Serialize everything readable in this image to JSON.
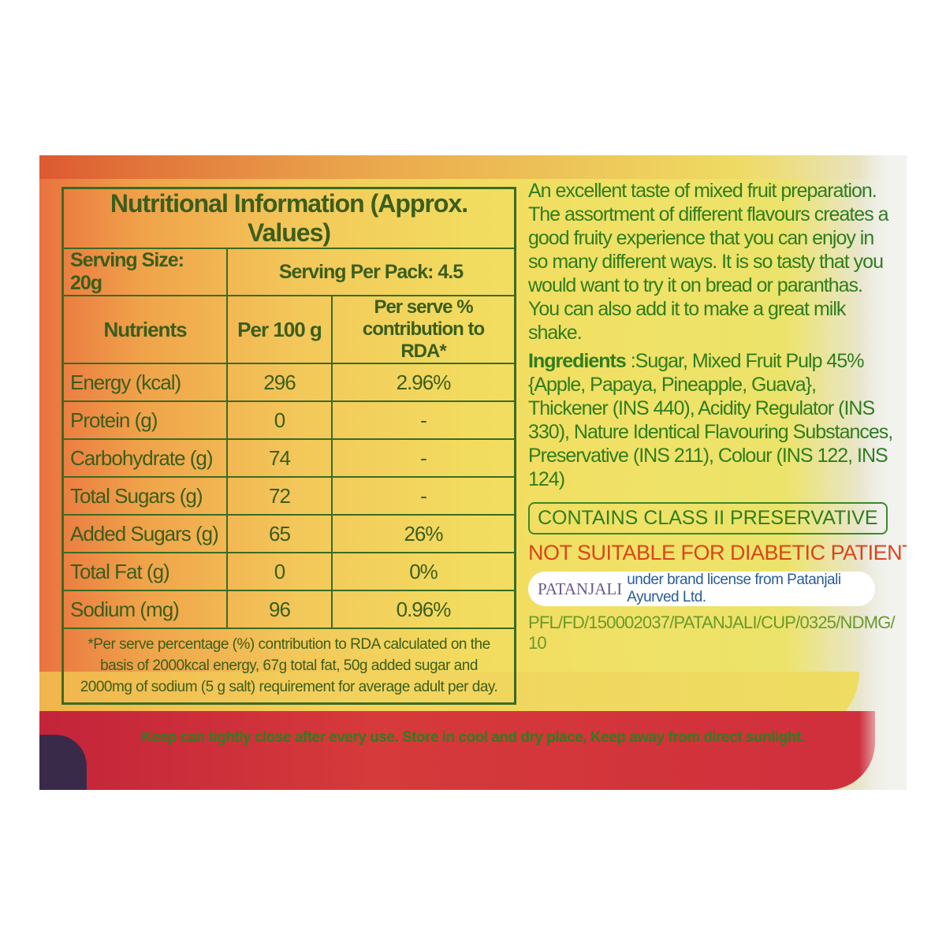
{
  "nutrition": {
    "title": "Nutritional Information (Approx. Values)",
    "serving_size": "Serving Size: 20g",
    "servings_per_pack": "Serving Per Pack: 4.5",
    "headers": [
      "Nutrients",
      "Per 100 g",
      "Per serve % contribution to RDA*"
    ],
    "rows": [
      {
        "nutrient": "Energy (kcal)",
        "per100g": "296",
        "rda": "2.96%"
      },
      {
        "nutrient": "Protein (g)",
        "per100g": "0",
        "rda": "-"
      },
      {
        "nutrient": "Carbohydrate (g)",
        "per100g": "74",
        "rda": "-"
      },
      {
        "nutrient": "Total Sugars (g)",
        "per100g": "72",
        "rda": "-"
      },
      {
        "nutrient": "Added Sugars (g)",
        "per100g": "65",
        "rda": "26%"
      },
      {
        "nutrient": "Total Fat (g)",
        "per100g": "0",
        "rda": "0%"
      },
      {
        "nutrient": "Sodium (mg)",
        "per100g": "96",
        "rda": "0.96%"
      }
    ],
    "footnote": "*Per serve percentage (%) contribution to RDA calculated on the basis of 2000kcal energy, 67g total fat, 50g added sugar and 2000mg of sodium (5 g salt) requirement for average adult per day."
  },
  "description": "An excellent taste of mixed fruit preparation. The assortment of different flavours creates a good fruity experience that you can enjoy in so many different ways. It is so tasty that you would want to try it on bread or paranthas. You can also add it to make a great milk shake.",
  "ingredients": {
    "label": "Ingredients",
    "text": ":Sugar, Mixed Fruit Pulp 45% {Apple, Papaya, Pineapple, Guava}, Thickener (INS 440), Acidity Regulator (INS 330), Nature Identical Flavouring Substances, Preservative (INS 211), Colour (INS 122, INS 124)"
  },
  "warnings": {
    "preservative": "CONTAINS CLASS II PRESERVATIVE",
    "diabetic": "NOT SUITABLE FOR DIABETIC PATIENTS"
  },
  "license": {
    "brand": "PATANJALI",
    "text": "under brand license from Patanjali Ayurved Ltd."
  },
  "code": "PFL/FD/150002037/PATANJALI/CUP/0325/NDMG/10",
  "storage": "Keep can tightly close after every use. Store in cool and dry place, Keep away from direct sunlight.",
  "colors": {
    "text_green": "#2f7d1f",
    "warning_red": "#d9461b",
    "label_yellow": "#f2dc5f",
    "band_red": "#c3243a"
  }
}
